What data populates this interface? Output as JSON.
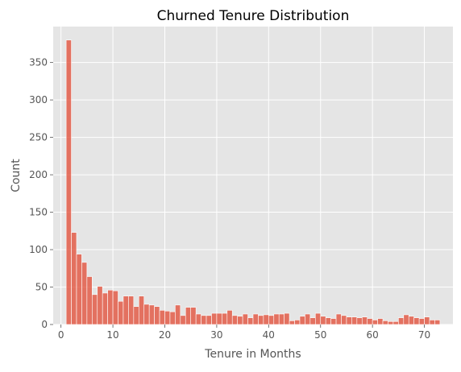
{
  "chart_data": {
    "type": "bar",
    "title": "Churned Tenure Distribution",
    "xlabel": "Tenure in Months",
    "ylabel": "Count",
    "xlim": [
      -1.5,
      75.5
    ],
    "ylim": [
      0,
      398
    ],
    "xticks": [
      0,
      10,
      20,
      30,
      40,
      50,
      60,
      70
    ],
    "yticks": [
      0,
      50,
      100,
      150,
      200,
      250,
      300,
      350
    ],
    "grid": true,
    "bar_color": "#e24a33",
    "bar_alpha": 0.75,
    "plot_background": "#e5e5e5",
    "bin_width": 1,
    "x": [
      1,
      2,
      3,
      4,
      5,
      6,
      7,
      8,
      9,
      10,
      11,
      12,
      13,
      14,
      15,
      16,
      17,
      18,
      19,
      20,
      21,
      22,
      23,
      24,
      25,
      26,
      27,
      28,
      29,
      30,
      31,
      32,
      33,
      34,
      35,
      36,
      37,
      38,
      39,
      40,
      41,
      42,
      43,
      44,
      45,
      46,
      47,
      48,
      49,
      50,
      51,
      52,
      53,
      54,
      55,
      56,
      57,
      58,
      59,
      60,
      61,
      62,
      63,
      64,
      65,
      66,
      67,
      68,
      69,
      70,
      71,
      72
    ],
    "values": [
      380,
      123,
      94,
      83,
      64,
      40,
      51,
      42,
      46,
      45,
      31,
      38,
      38,
      24,
      38,
      27,
      26,
      24,
      19,
      18,
      17,
      26,
      12,
      23,
      23,
      14,
      12,
      12,
      15,
      15,
      15,
      19,
      12,
      11,
      14,
      9,
      14,
      12,
      13,
      12,
      14,
      14,
      15,
      5,
      6,
      11,
      14,
      9,
      15,
      11,
      9,
      8,
      14,
      12,
      10,
      10,
      9,
      10,
      8,
      6,
      8,
      5,
      4,
      4,
      9,
      13,
      11,
      9,
      8,
      10,
      6,
      6
    ]
  }
}
